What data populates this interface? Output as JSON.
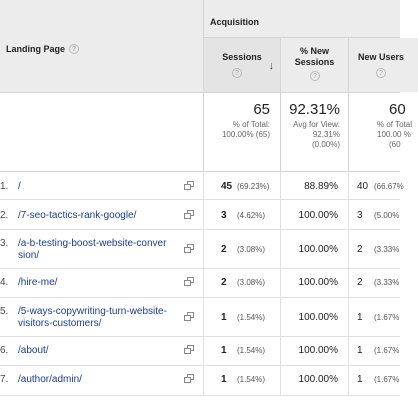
{
  "header": {
    "landing_page_label": "Landing Page",
    "group_label": "Acquisition",
    "columns": {
      "sessions": "Sessions",
      "new_sessions_line1": "% New",
      "new_sessions_line2": "Sessions",
      "new_users": "New Users"
    },
    "help_glyph": "?",
    "sort_glyph": "↓"
  },
  "totals": {
    "sessions": {
      "value": "65",
      "line1": "% of Total:",
      "line2": "100.00% (65)"
    },
    "new_sessions": {
      "value": "92.31%",
      "line1": "Avg for View:",
      "line2": "92.31%",
      "line3": "(0.00%)"
    },
    "new_users": {
      "value": "60",
      "line1": "% of Total",
      "line2": "100.00 %",
      "line3": "(60"
    }
  },
  "rows": [
    {
      "num": "1.",
      "page_line1": "/",
      "page_line2": "",
      "sessions": "45",
      "sessions_pct": "(69.23%)",
      "new_pct": "88.89%",
      "new_users": "40",
      "new_users_pct": "(66.67%"
    },
    {
      "num": "2.",
      "page_line1": "/7-seo-tactics-rank-google/",
      "page_line2": "",
      "sessions": "3",
      "sessions_pct": "(4.62%)",
      "new_pct": "100.00%",
      "new_users": "3",
      "new_users_pct": "(5.00%"
    },
    {
      "num": "3.",
      "page_line1": "/a-b-testing-boost-website-conver",
      "page_line2": "sion/",
      "sessions": "2",
      "sessions_pct": "(3.08%)",
      "new_pct": "100.00%",
      "new_users": "2",
      "new_users_pct": "(3.33%"
    },
    {
      "num": "4.",
      "page_line1": "/hire-me/",
      "page_line2": "",
      "sessions": "2",
      "sessions_pct": "(3.08%)",
      "new_pct": "100.00%",
      "new_users": "2",
      "new_users_pct": "(3.33%"
    },
    {
      "num": "5.",
      "page_line1": "/5-ways-copywriting-turn-website-",
      "page_line2": "visitors-customers/",
      "sessions": "1",
      "sessions_pct": "(1.54%)",
      "new_pct": "100.00%",
      "new_users": "1",
      "new_users_pct": "(1.67%"
    },
    {
      "num": "6.",
      "page_line1": "/about/",
      "page_line2": "",
      "sessions": "1",
      "sessions_pct": "(1.54%)",
      "new_pct": "100.00%",
      "new_users": "1",
      "new_users_pct": "(1.67%"
    },
    {
      "num": "7.",
      "page_line1": "/author/admin/",
      "page_line2": "",
      "sessions": "1",
      "sessions_pct": "(1.54%)",
      "new_pct": "100.00%",
      "new_users": "1",
      "new_users_pct": "(1.67%"
    }
  ]
}
